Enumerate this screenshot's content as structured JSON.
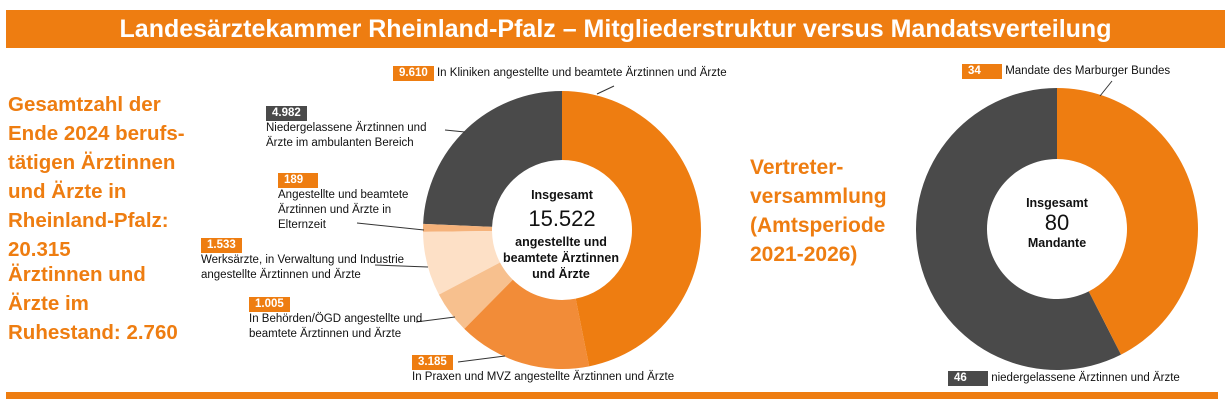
{
  "title": "Landesärztekammer Rheinland-Pfalz – Mitgliederstruktur versus Mandatsverteilung",
  "left_text": {
    "total": "Gesamtzahl der Ende 2024 berufs-tätigen Ärztinnen und Ärzte in Rheinland-Pfalz: 20.315",
    "retired": "Ärztinnen und Ärzte im Ruhestand: 2.760"
  },
  "right_text": "Vertreter-versammlung (Amtsperiode 2021-2026)",
  "chart_data": [
    {
      "type": "pie",
      "donut": true,
      "center": {
        "top": "Insgesamt",
        "value": "15.522",
        "bottom": "angestellte und beamtete Ärztinnen und Ärzte"
      },
      "slices": [
        {
          "label": "In Kliniken angestellte und beamtete Ärztinnen  und Ärzte",
          "value_label": "9.610",
          "value": 9610,
          "color": "#ee7d11"
        },
        {
          "label": "In Praxen und MVZ angestellte Ärztinnen und Ärzte",
          "value_label": "3.185",
          "value": 3185,
          "color": "#f28c38"
        },
        {
          "label": "In Behörden/ÖGD angestellte und beamtete Ärztinnen und Ärzte",
          "value_label": "1.005",
          "value": 1005,
          "color": "#f7c08e"
        },
        {
          "label": "Werksärzte, in Verwaltung und Industrie angestellte Ärztinnen und Ärzte",
          "value_label": "1.533",
          "value": 1533,
          "color": "#fde0c6"
        },
        {
          "label": "Angestellte und beamtete Ärztinnen und Ärzte in Elternzeit",
          "value_label": "189",
          "value": 189,
          "color": "#f5b27a"
        },
        {
          "label": "Niedergelassene Ärztinnen und Ärzte im ambulanten Bereich",
          "value_label": "4.982",
          "value": 4982,
          "color": "#4a4a4a"
        }
      ]
    },
    {
      "type": "pie",
      "donut": true,
      "center": {
        "top": "Insgesamt",
        "value": "80",
        "bottom": "Mandante"
      },
      "slices": [
        {
          "label": "Mandate des Marburger Bundes",
          "value_label": "34",
          "value": 34,
          "color": "#ee7d11"
        },
        {
          "label": "niedergelassene Ärztinnen und Ärzte",
          "value_label": "46",
          "value": 46,
          "color": "#4a4a4a"
        }
      ]
    }
  ]
}
